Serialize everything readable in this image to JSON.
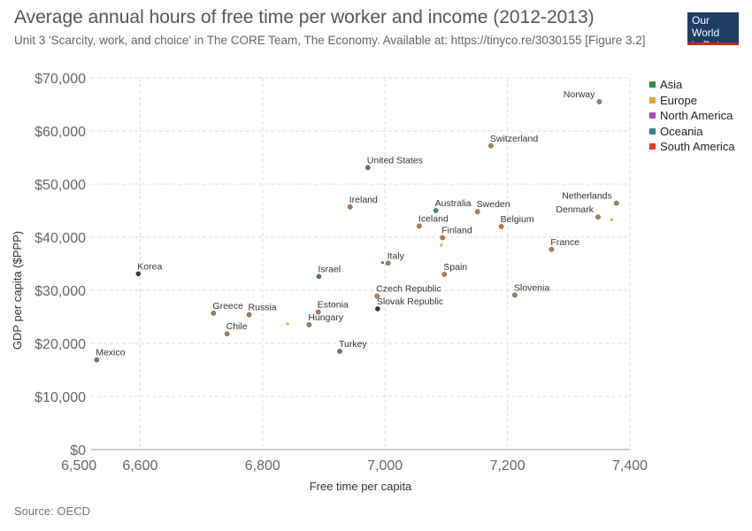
{
  "header": {
    "title": "Average annual hours of free time per worker and income (2012-2013)",
    "subtitle": "Unit 3 'Scarcity, work, and choice' in The CORE Team, The Economy. Available at: https://tinyco.re/3030155 [Figure 3.2]",
    "logo_line1": "Our World",
    "logo_line2": "in Data"
  },
  "footer": {
    "source": "Source: OECD"
  },
  "chart_data": {
    "type": "scatter",
    "title": "Average annual hours of free time per worker and income (2012-2013)",
    "xlabel": "Free time per capita",
    "ylabel": "GDP per capita ($PPP)",
    "xlim": [
      6520,
      7400
    ],
    "ylim": [
      0,
      70000
    ],
    "x_ticks": [
      6500,
      6600,
      6800,
      7000,
      7200,
      7400
    ],
    "x_tick_labels": [
      "6,500",
      "6,600",
      "6,800",
      "7,000",
      "7,200",
      "7,400"
    ],
    "y_ticks": [
      0,
      10000,
      20000,
      30000,
      40000,
      50000,
      60000,
      70000
    ],
    "y_tick_labels": [
      "$0",
      "$10,000",
      "$20,000",
      "$30,000",
      "$40,000",
      "$50,000",
      "$60,000",
      "$70,000"
    ],
    "grid": true,
    "legend_position": "right",
    "legend": [
      {
        "name": "Asia",
        "color": "#3a8a4a"
      },
      {
        "name": "Europe",
        "color": "#e8a23a"
      },
      {
        "name": "North America",
        "color": "#a44fb4"
      },
      {
        "name": "Oceania",
        "color": "#2f8a8a"
      },
      {
        "name": "South America",
        "color": "#d83b2d"
      }
    ],
    "points": [
      {
        "label": "Norway",
        "x": 7350,
        "y": 65500,
        "color": "#b07c55"
      },
      {
        "label": "Switzerland",
        "x": 7173,
        "y": 57200,
        "color": "#b07c55"
      },
      {
        "label": "United States",
        "x": 6972,
        "y": 53100,
        "color": "#7b5aa6"
      },
      {
        "label": "Netherlands",
        "x": 7378,
        "y": 46400,
        "color": "#b07c55"
      },
      {
        "label": "Ireland",
        "x": 6943,
        "y": 45700,
        "color": "#b07c55"
      },
      {
        "label": "Australia",
        "x": 7083,
        "y": 45000,
        "color": "#3a8a84"
      },
      {
        "label": "Sweden",
        "x": 7151,
        "y": 44800,
        "color": "#b07c55"
      },
      {
        "label": "Denmark",
        "x": 7348,
        "y": 43800,
        "color": "#b07c55"
      },
      {
        "label": "Iceland",
        "x": 7056,
        "y": 42100,
        "color": "#b07c55"
      },
      {
        "label": "Belgium",
        "x": 7190,
        "y": 42000,
        "color": "#b07c55"
      },
      {
        "label": "Finland",
        "x": 7094,
        "y": 39900,
        "color": "#b07c55"
      },
      {
        "label": "France",
        "x": 7272,
        "y": 37700,
        "color": "#b07c55"
      },
      {
        "label": "Italy",
        "x": 7005,
        "y": 35100,
        "color": "#b07c55"
      },
      {
        "label": "Korea",
        "x": 6597,
        "y": 33100,
        "color": "#333333"
      },
      {
        "label": "Spain",
        "x": 7097,
        "y": 33000,
        "color": "#b07c55"
      },
      {
        "label": "Israel",
        "x": 6892,
        "y": 32600,
        "color": "#3a8a6a"
      },
      {
        "label": "Slovenia",
        "x": 7212,
        "y": 29100,
        "color": "#b07c55"
      },
      {
        "label": "Czech Republic",
        "x": 6987,
        "y": 28900,
        "color": "#b07c55"
      },
      {
        "label": "Slovak Republic",
        "x": 6988,
        "y": 26500,
        "color": "#333333"
      },
      {
        "label": "Estonia",
        "x": 6891,
        "y": 25900,
        "color": "#b07c55"
      },
      {
        "label": "Greece",
        "x": 6720,
        "y": 25700,
        "color": "#b07c55"
      },
      {
        "label": "Russia",
        "x": 6778,
        "y": 25400,
        "color": "#b07c55"
      },
      {
        "label": "Hungary",
        "x": 6876,
        "y": 23500,
        "color": "#b07c55"
      },
      {
        "label": "Chile",
        "x": 6742,
        "y": 21800,
        "color": "#b07c55"
      },
      {
        "label": "Turkey",
        "x": 6926,
        "y": 18500,
        "color": "#777777"
      },
      {
        "label": "Mexico",
        "x": 6529,
        "y": 16900,
        "color": "#777777"
      }
    ],
    "minor_points": [
      {
        "x": 7370,
        "y": 43300,
        "color": "#e8a23a"
      },
      {
        "x": 7092,
        "y": 38500,
        "color": "#e8a23a"
      },
      {
        "x": 6996,
        "y": 35200,
        "color": "#2f8a8a"
      },
      {
        "x": 6841,
        "y": 23700,
        "color": "#e8a23a"
      }
    ]
  }
}
